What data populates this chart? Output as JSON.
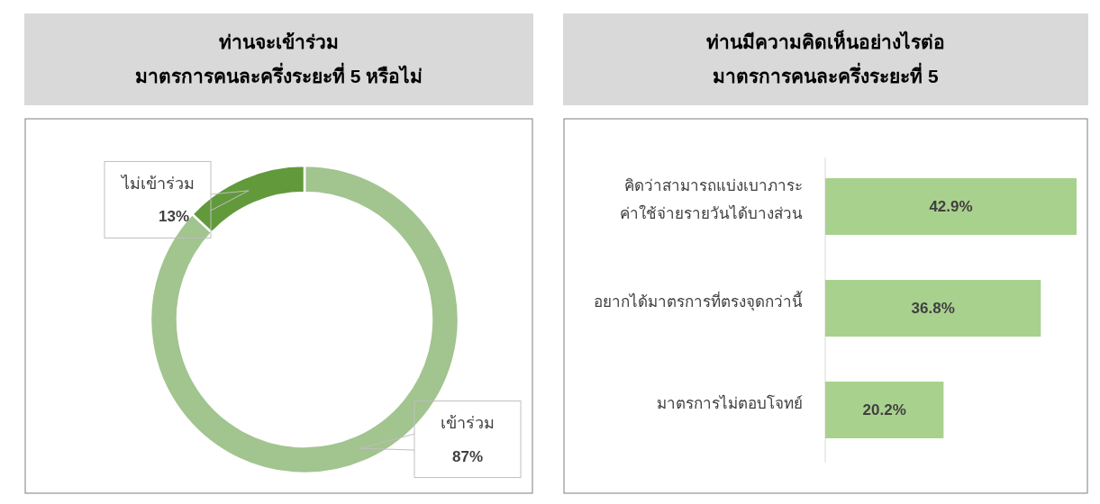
{
  "chart_data": [
    {
      "type": "donut",
      "title": "ท่านจะเข้าร่วม\nมาตรการคนละครึ่งระยะที่ 5 หรือไม่",
      "categories": [
        "เข้าร่วม",
        "ไม่เข้าร่วม"
      ],
      "values": [
        87,
        13
      ],
      "colors": [
        "#a2c48f",
        "#629a3b"
      ],
      "value_labels": [
        "87%",
        "13%"
      ]
    },
    {
      "type": "bar",
      "orientation": "horizontal",
      "title": "ท่านมีความคิดเห็นอย่างไรต่อ\nมาตรการคนละครึ่งระยะที่ 5",
      "categories": [
        "คิดว่าสามารถแบ่งเบาภาระ\nค่าใช้จ่ายรายวันได้บางส่วน",
        "อยากได้มาตรการที่ตรงจุดกว่านี้",
        "มาตรการไม่ตอบโจทย์"
      ],
      "values": [
        42.9,
        36.8,
        20.2
      ],
      "color": "#a9d18e",
      "value_labels": [
        "42.9%",
        "36.8%",
        "20.2%"
      ]
    }
  ]
}
